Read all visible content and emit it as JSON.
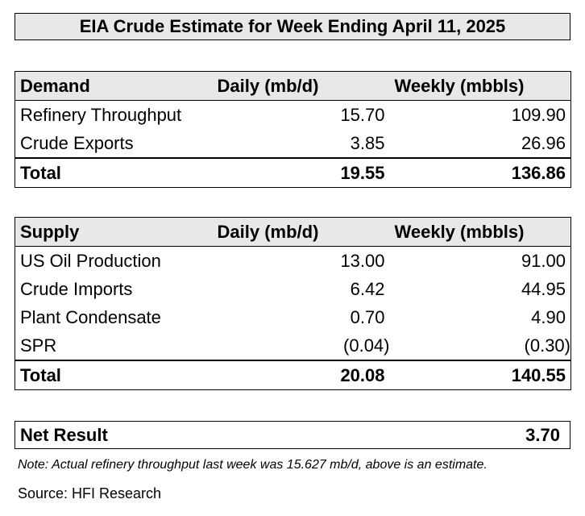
{
  "title": "EIA Crude Estimate for Week Ending April 11, 2025",
  "demand": {
    "header": {
      "label": "Demand",
      "daily": "Daily (mb/d)",
      "weekly": "Weekly (mbbls)"
    },
    "rows": [
      {
        "label": "Refinery Throughput",
        "daily": "15.70",
        "weekly": "109.90"
      },
      {
        "label": "Crude Exports",
        "daily": "3.85",
        "weekly": "26.96"
      }
    ],
    "total": {
      "label": "Total",
      "daily": "19.55",
      "weekly": "136.86"
    }
  },
  "supply": {
    "header": {
      "label": "Supply",
      "daily": "Daily (mb/d)",
      "weekly": "Weekly (mbbls)"
    },
    "rows": [
      {
        "label": "US Oil Production",
        "daily": "13.00",
        "weekly": "91.00"
      },
      {
        "label": "Crude Imports",
        "daily": "6.42",
        "weekly": "44.95"
      },
      {
        "label": "Plant Condensate",
        "daily": "0.70",
        "weekly": "4.90"
      },
      {
        "label": "SPR",
        "daily": "(0.04)",
        "weekly": "(0.30)"
      }
    ],
    "total": {
      "label": "Total",
      "daily": "20.08",
      "weekly": "140.55"
    }
  },
  "net_result": {
    "label": "Net Result",
    "value": "3.70"
  },
  "note": "Note: Actual refinery throughput last week was 15.627 mb/d, above is an estimate.",
  "source": "Source: HFI Research",
  "colors": {
    "header_fill": "#e8e8e8",
    "border": "#000000",
    "background": "#ffffff"
  }
}
